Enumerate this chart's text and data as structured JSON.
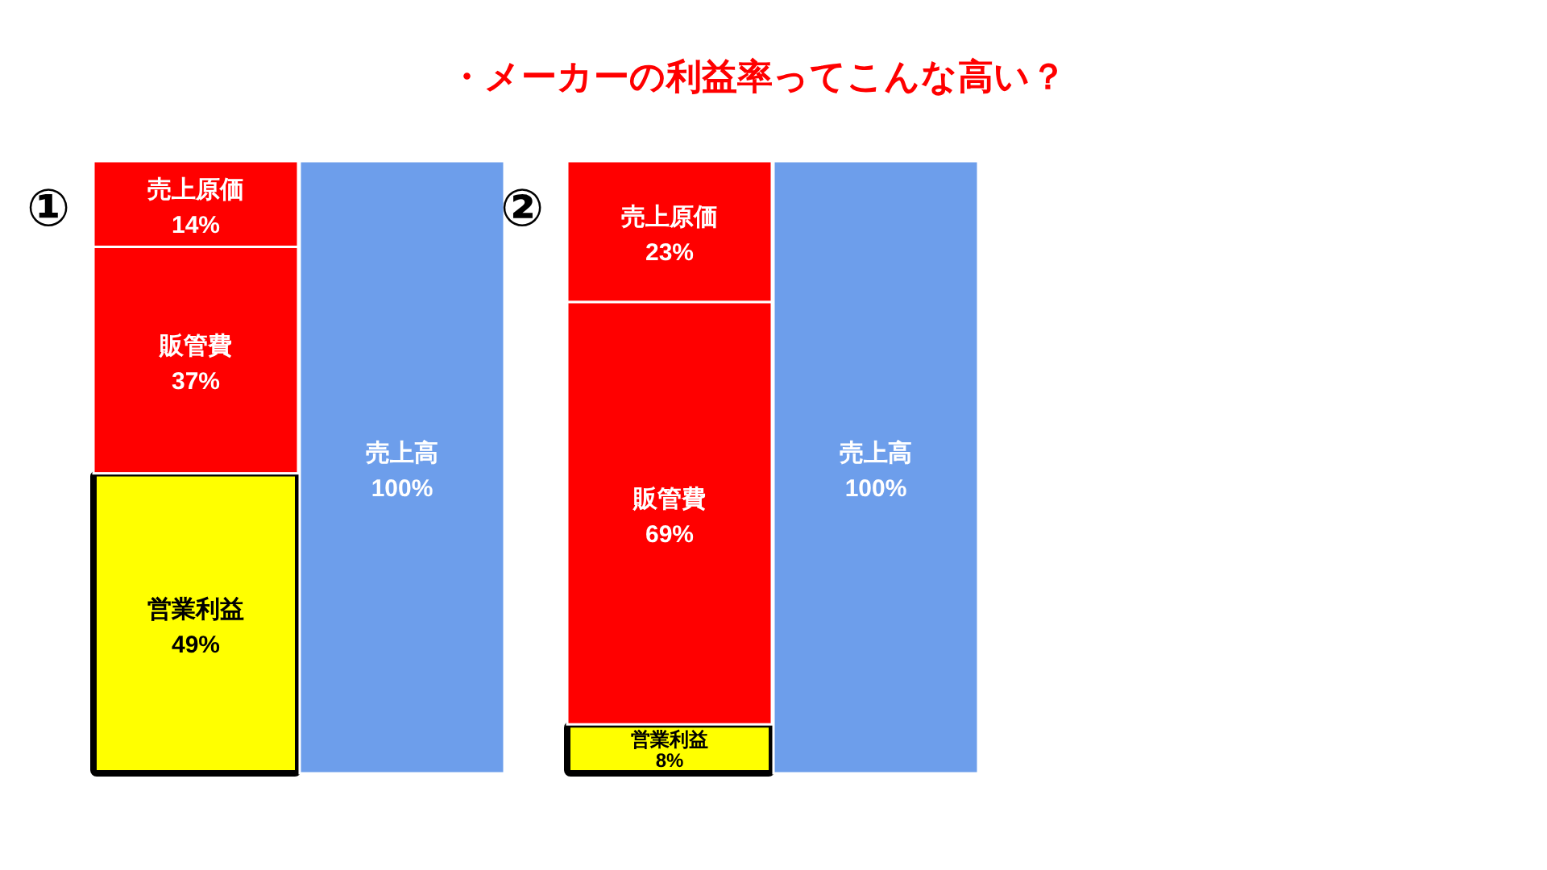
{
  "chart_data": [
    {
      "type": "bar",
      "stacked": true,
      "categories": [
        null,
        null
      ],
      "ylim": [
        0,
        100
      ],
      "legend": false,
      "annotations": [
        "①"
      ],
      "series": [
        {
          "name": "営業利益",
          "color": "#ffff00",
          "values": [
            49,
            null
          ],
          "value_labels": [
            "49%",
            null
          ]
        },
        {
          "name": "販管費",
          "color": "#ff0000",
          "values": [
            37,
            null
          ],
          "value_labels": [
            "37%",
            null
          ]
        },
        {
          "name": "売上原価",
          "color": "#ff0000",
          "values": [
            14,
            null
          ],
          "value_labels": [
            "14%",
            null
          ]
        },
        {
          "name": "売上高",
          "color": "#6d9eeb",
          "values": [
            null,
            100
          ],
          "value_labels": [
            null,
            "100%"
          ]
        }
      ]
    },
    {
      "type": "bar",
      "title": "・メーカーの利益率ってこんな高い？",
      "stacked": true,
      "categories": [
        null,
        null
      ],
      "ylim": [
        0,
        100
      ],
      "legend": false,
      "annotations": [
        "②"
      ],
      "series": [
        {
          "name": "営業利益",
          "color": "#ffff00",
          "values": [
            8,
            null
          ],
          "value_labels": [
            "8%",
            null
          ]
        },
        {
          "name": "販管費",
          "color": "#ff0000",
          "values": [
            69,
            null
          ],
          "value_labels": [
            "69%",
            null
          ]
        },
        {
          "name": "売上原価",
          "color": "#ff0000",
          "values": [
            23,
            null
          ],
          "value_labels": [
            "23%",
            null
          ]
        },
        {
          "name": "売上高",
          "color": "#6d9eeb",
          "values": [
            null,
            100
          ],
          "value_labels": [
            null,
            "100%"
          ]
        }
      ]
    }
  ]
}
